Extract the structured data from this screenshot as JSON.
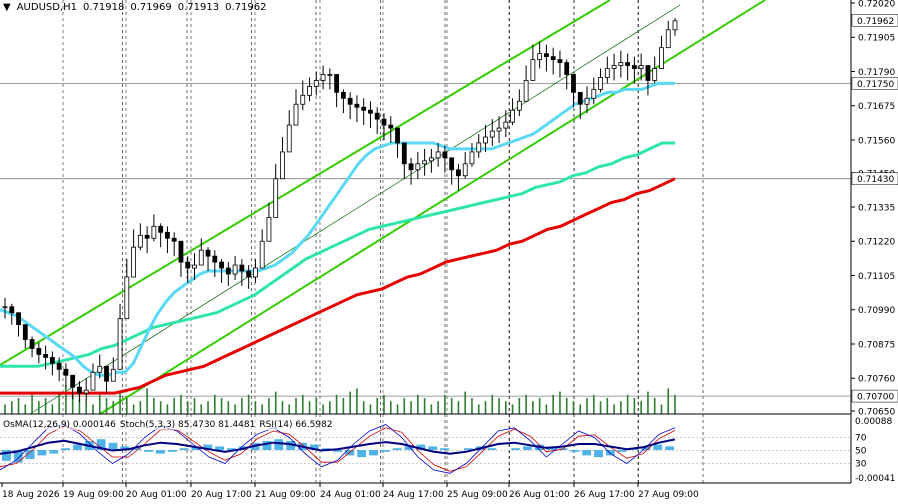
{
  "header": {
    "symbol": "AUDUSD,H1",
    "open": "0.71918",
    "high": "0.71969",
    "low": "0.71913",
    "close": "0.71962"
  },
  "indicator_header": {
    "osma": "OsMA(12,26,9) 0.000146",
    "stoch": "Stoch(5,3,3) 85.4730 81.4481",
    "rsi": "RSI(14) 66.5982"
  },
  "colors": {
    "candle": "#000000",
    "ema_fast": "#59d9f5",
    "ema_mid": "#2ee6a8",
    "ema_slow": "#e60000",
    "channel": "#33cc00",
    "volume": "#2e7d32",
    "osma": "#4fb3e8",
    "stoch_main": "#0000cc",
    "stoch_signal": "#cc0000",
    "rsi": "#000080"
  },
  "chart_data": {
    "type": "line",
    "symbol": "AUDUSD",
    "timeframe": "H1",
    "y_axis": {
      "ticks": [
        "0.72020",
        "0.71905",
        "0.71790",
        "0.71675",
        "0.71560",
        "0.71450",
        "0.71335",
        "0.71220",
        "0.71105",
        "0.70990",
        "0.70875",
        "0.70760",
        "0.70650"
      ],
      "ylim": [
        0.7065,
        0.7202
      ]
    },
    "price_labels": [
      "0.71962",
      "0.71750",
      "0.71430",
      "0.70700"
    ],
    "x_axis": {
      "ticks": [
        "18 Aug 2026",
        "19 Aug 09:00",
        "20 Aug 01:00",
        "20 Aug 17:00",
        "21 Aug 09:00",
        "24 Aug 01:00",
        "24 Aug 17:00",
        "25 Aug 09:00",
        "26 Aug 01:00",
        "26 Aug 17:00",
        "27 Aug 09:00"
      ]
    },
    "price_close": [
      0.71,
      0.7098,
      0.7094,
      0.7089,
      0.7086,
      0.7084,
      0.7083,
      0.7081,
      0.7079,
      0.7077,
      0.7073,
      0.7071,
      0.7072,
      0.7078,
      0.708,
      0.7075,
      0.7079,
      0.7096,
      0.711,
      0.712,
      0.7124,
      0.7123,
      0.7127,
      0.7125,
      0.7123,
      0.7122,
      0.7115,
      0.7113,
      0.7114,
      0.7119,
      0.7117,
      0.7115,
      0.7113,
      0.7111,
      0.7114,
      0.7112,
      0.711,
      0.7113,
      0.7122,
      0.713,
      0.7143,
      0.7152,
      0.7161,
      0.7168,
      0.7171,
      0.7174,
      0.7176,
      0.7178,
      0.7178,
      0.7172,
      0.717,
      0.7168,
      0.7167,
      0.7166,
      0.7165,
      0.7163,
      0.7161,
      0.716,
      0.7155,
      0.7148,
      0.7146,
      0.7148,
      0.7149,
      0.715,
      0.7152,
      0.715,
      0.7146,
      0.7144,
      0.7148,
      0.7152,
      0.7155,
      0.7157,
      0.7159,
      0.716,
      0.7162,
      0.7166,
      0.7169,
      0.7176,
      0.7183,
      0.7185,
      0.7184,
      0.7183,
      0.7182,
      0.7178,
      0.7172,
      0.7168,
      0.717,
      0.7173,
      0.7177,
      0.718,
      0.7181,
      0.7182,
      0.7181,
      0.718,
      0.7181,
      0.7176,
      0.718,
      0.7187,
      0.7193,
      0.7196
    ],
    "price_high": [
      0.7103,
      0.7101,
      0.7097,
      0.7092,
      0.709,
      0.7088,
      0.7087,
      0.7085,
      0.7083,
      0.7081,
      0.7077,
      0.7075,
      0.7076,
      0.7081,
      0.7084,
      0.7079,
      0.7083,
      0.7101,
      0.7116,
      0.7126,
      0.7128,
      0.7127,
      0.7131,
      0.7128,
      0.7127,
      0.7125,
      0.7119,
      0.7117,
      0.7118,
      0.7123,
      0.712,
      0.7119,
      0.7116,
      0.7115,
      0.7117,
      0.7116,
      0.7114,
      0.7116,
      0.7126,
      0.7135,
      0.7148,
      0.7157,
      0.7166,
      0.7173,
      0.7176,
      0.7177,
      0.7179,
      0.7181,
      0.718,
      0.7175,
      0.7173,
      0.7172,
      0.7171,
      0.717,
      0.7169,
      0.7167,
      0.7165,
      0.7164,
      0.7159,
      0.7152,
      0.715,
      0.7152,
      0.7153,
      0.7153,
      0.7155,
      0.7154,
      0.715,
      0.7148,
      0.7152,
      0.7155,
      0.7158,
      0.7161,
      0.7163,
      0.7164,
      0.7166,
      0.717,
      0.7173,
      0.7181,
      0.7188,
      0.7189,
      0.7188,
      0.7187,
      0.7186,
      0.7183,
      0.7176,
      0.7172,
      0.7174,
      0.7177,
      0.718,
      0.7184,
      0.7185,
      0.7186,
      0.7185,
      0.7184,
      0.7185,
      0.718,
      0.7184,
      0.7191,
      0.7196,
      0.7197
    ],
    "price_low": [
      0.7096,
      0.7094,
      0.709,
      0.7086,
      0.7083,
      0.7081,
      0.7079,
      0.7077,
      0.7075,
      0.7073,
      0.7069,
      0.7068,
      0.7068,
      0.7074,
      0.7076,
      0.7071,
      0.7075,
      0.709,
      0.7104,
      0.7115,
      0.7119,
      0.7118,
      0.7122,
      0.712,
      0.7118,
      0.7117,
      0.711,
      0.7108,
      0.7109,
      0.7114,
      0.7112,
      0.711,
      0.7108,
      0.7107,
      0.7109,
      0.7107,
      0.7106,
      0.7108,
      0.7117,
      0.7125,
      0.7137,
      0.7147,
      0.7156,
      0.7163,
      0.7166,
      0.7169,
      0.7171,
      0.7173,
      0.7173,
      0.7167,
      0.7165,
      0.7163,
      0.7162,
      0.7161,
      0.716,
      0.7158,
      0.7156,
      0.7155,
      0.715,
      0.7143,
      0.7141,
      0.7143,
      0.7144,
      0.7145,
      0.7147,
      0.7145,
      0.7141,
      0.7139,
      0.7143,
      0.7147,
      0.715,
      0.7152,
      0.7154,
      0.7155,
      0.7157,
      0.7161,
      0.7164,
      0.7171,
      0.7178,
      0.718,
      0.7179,
      0.7178,
      0.7177,
      0.7173,
      0.7167,
      0.7163,
      0.7165,
      0.7168,
      0.7172,
      0.7175,
      0.7176,
      0.7177,
      0.7176,
      0.7175,
      0.7176,
      0.7171,
      0.7175,
      0.7182,
      0.7188,
      0.7191
    ],
    "ema_fast": [
      0.7099,
      0.7098,
      0.7097,
      0.7095,
      0.7093,
      0.7091,
      0.7089,
      0.7087,
      0.7085,
      0.7083,
      0.708,
      0.7078,
      0.7077,
      0.7077,
      0.7078,
      0.7078,
      0.7081,
      0.7087,
      0.7093,
      0.7098,
      0.7102,
      0.7105,
      0.7107,
      0.7109,
      0.7111,
      0.7112,
      0.7112,
      0.7112,
      0.7112,
      0.7112,
      0.7112,
      0.7112,
      0.7113,
      0.7114,
      0.7116,
      0.7118,
      0.7121,
      0.7124,
      0.7128,
      0.7132,
      0.7136,
      0.714,
      0.7144,
      0.7148,
      0.7151,
      0.7153,
      0.7154,
      0.7155,
      0.7155,
      0.7155,
      0.7155,
      0.7155,
      0.7155,
      0.7154,
      0.7153,
      0.7153,
      0.7153,
      0.7153,
      0.7153,
      0.7153,
      0.7154,
      0.7155,
      0.7156,
      0.7157,
      0.7158,
      0.716,
      0.7162,
      0.7164,
      0.7166,
      0.7168,
      0.7169,
      0.717,
      0.7171,
      0.7172,
      0.7172,
      0.7173,
      0.7173,
      0.7173,
      0.7174,
      0.7175,
      0.7175,
      0.7175
    ],
    "ema_mid": [
      0.708,
      0.708,
      0.708,
      0.708,
      0.7081,
      0.7082,
      0.7083,
      0.7084,
      0.7086,
      0.7087,
      0.7089,
      0.7091,
      0.7093,
      0.7094,
      0.7095,
      0.7096,
      0.7097,
      0.7098,
      0.71,
      0.7102,
      0.7104,
      0.7107,
      0.711,
      0.7113,
      0.7116,
      0.7118,
      0.712,
      0.7122,
      0.7124,
      0.7126,
      0.7127,
      0.7128,
      0.7129,
      0.713,
      0.7131,
      0.7132,
      0.7133,
      0.7134,
      0.7135,
      0.7136,
      0.7137,
      0.7138,
      0.714,
      0.7141,
      0.7142,
      0.7144,
      0.7145,
      0.7147,
      0.7148,
      0.715,
      0.7151,
      0.7153,
      0.7155,
      0.7155
    ],
    "ema_slow": [
      0.7071,
      0.7071,
      0.7071,
      0.7071,
      0.7071,
      0.7071,
      0.7071,
      0.7071,
      0.7071,
      0.7071,
      0.7072,
      0.7073,
      0.7075,
      0.7077,
      0.7078,
      0.7079,
      0.708,
      0.7082,
      0.7084,
      0.7086,
      0.7088,
      0.709,
      0.7092,
      0.7094,
      0.7096,
      0.7098,
      0.71,
      0.7102,
      0.7104,
      0.7105,
      0.7106,
      0.7108,
      0.711,
      0.7111,
      0.7113,
      0.7115,
      0.7116,
      0.7117,
      0.7118,
      0.7119,
      0.7121,
      0.7122,
      0.7124,
      0.7126,
      0.7127,
      0.7129,
      0.7131,
      0.7133,
      0.7135,
      0.7136,
      0.7138,
      0.7139,
      0.7141,
      0.7143
    ],
    "volume": [
      0.3,
      0.4,
      0.5,
      0.3,
      0.6,
      0.4,
      0.5,
      0.3,
      0.7,
      0.9,
      0.6,
      0.5,
      0.4,
      0.3,
      0.6,
      0.5,
      0.4,
      0.7,
      0.5,
      0.3,
      0.4,
      0.8,
      0.5,
      0.4,
      0.3,
      0.5,
      0.6,
      0.4,
      0.5,
      0.3,
      0.4,
      0.6,
      0.5,
      0.4,
      0.3,
      0.5,
      0.6,
      0.4,
      0.3,
      0.5,
      0.7,
      0.4,
      0.3,
      0.5,
      0.6,
      0.4,
      0.5,
      0.3,
      0.4,
      0.6,
      0.5,
      0.7,
      0.8,
      0.4,
      0.3,
      0.5,
      0.6,
      0.4,
      0.3,
      0.5,
      0.4,
      0.6,
      0.5,
      0.3,
      0.4,
      0.6,
      0.5,
      0.4,
      0.7,
      0.5,
      0.3,
      0.4,
      0.6,
      0.5,
      0.4,
      0.3,
      0.5,
      0.6,
      0.4,
      0.5,
      0.3,
      0.6,
      0.7,
      0.5,
      0.4,
      0.3,
      0.5,
      0.6,
      0.4,
      0.5,
      0.3,
      0.4,
      0.6,
      0.5,
      0.4,
      0.7,
      0.5,
      0.3,
      0.8,
      0.6
    ],
    "indicator_axis_labels": [
      "0.00088",
      "70",
      "50",
      "30",
      "-0.00041"
    ],
    "osma_values": [
      -0.6,
      -0.7,
      -0.5,
      -0.3,
      -0.2,
      0.1,
      0.3,
      0.5,
      0.6,
      0.4,
      0.2,
      0.1,
      -0.1,
      -0.2,
      -0.1,
      0.1,
      0.2,
      0.3,
      0.2,
      0.1,
      0.2,
      0.4,
      0.5,
      0.6,
      0.5,
      0.4,
      0.3,
      0.1,
      -0.1,
      -0.3,
      -0.4,
      -0.3,
      -0.1,
      0.1,
      0.2,
      0.3,
      0.2,
      0.1,
      0.0,
      0.1,
      0.2,
      0.1,
      0.0,
      0.1,
      0.2,
      0.3,
      0.2,
      0.1,
      -0.1,
      -0.3,
      -0.4,
      -0.3,
      -0.1,
      0.1,
      0.2,
      0.3,
      0.2
    ],
    "stoch_main": [
      20,
      35,
      60,
      85,
      90,
      75,
      50,
      30,
      45,
      70,
      88,
      80,
      60,
      40,
      30,
      55,
      75,
      85,
      70,
      45,
      25,
      35,
      60,
      80,
      90,
      70,
      40,
      20,
      15,
      30,
      55,
      80,
      85,
      65,
      40,
      60,
      80,
      70,
      45,
      30,
      50,
      75,
      85
    ],
    "stoch_signal": [
      25,
      30,
      50,
      75,
      88,
      80,
      60,
      40,
      40,
      60,
      82,
      82,
      65,
      48,
      35,
      45,
      68,
      80,
      75,
      55,
      32,
      32,
      52,
      72,
      85,
      78,
      50,
      28,
      18,
      25,
      48,
      72,
      83,
      72,
      48,
      52,
      72,
      74,
      55,
      38,
      45,
      68,
      81
    ],
    "rsi_values": [
      45,
      48,
      55,
      62,
      65,
      60,
      55,
      50,
      52,
      58,
      62,
      60,
      56,
      52,
      48,
      52,
      58,
      62,
      60,
      55,
      50,
      52,
      56,
      60,
      63,
      60,
      54,
      48,
      45,
      48,
      54,
      60,
      62,
      58,
      54,
      56,
      60,
      60,
      56,
      52,
      55,
      62,
      67
    ]
  }
}
